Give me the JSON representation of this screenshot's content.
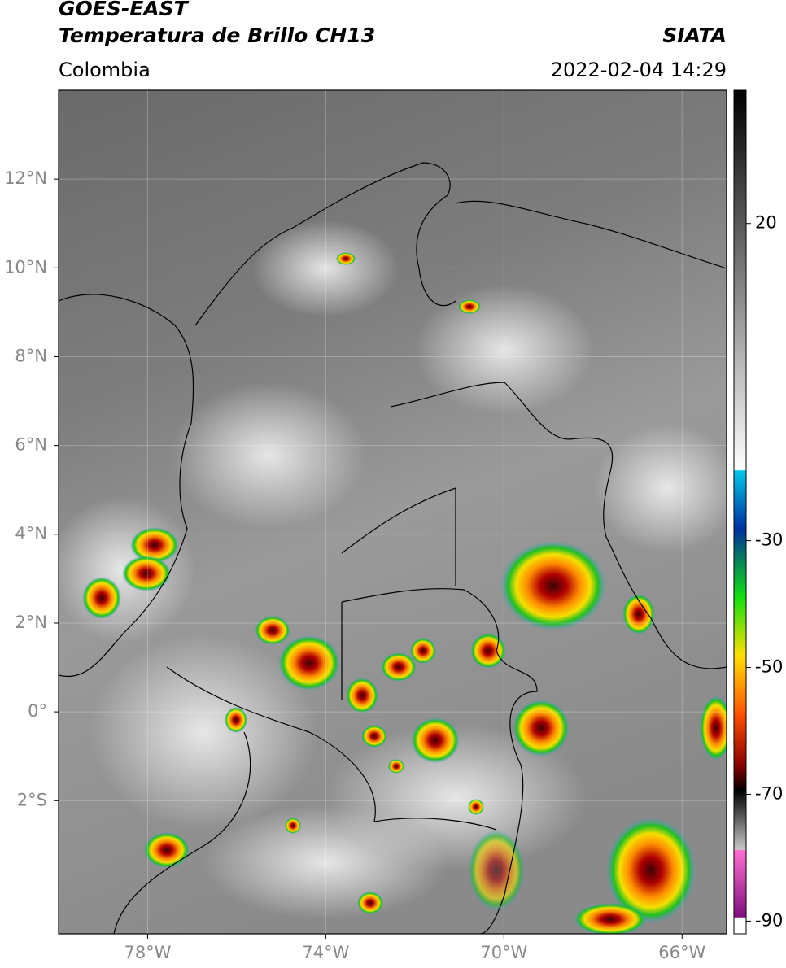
{
  "header": {
    "title": "GOES-EAST",
    "subtitle": "Temperatura de Brillo CH13",
    "region": "Colombia",
    "source": "SIATA",
    "datetime": "2022-02-04 14:29"
  },
  "map": {
    "xlim": [
      -80,
      -65
    ],
    "ylim": [
      -5,
      14
    ],
    "xticks": [
      {
        "value": -78,
        "label": "78°W"
      },
      {
        "value": -74,
        "label": "74°W"
      },
      {
        "value": -70,
        "label": "70°W"
      },
      {
        "value": -66,
        "label": "66°W"
      }
    ],
    "yticks": [
      {
        "value": 12,
        "label": "12°N"
      },
      {
        "value": 10,
        "label": "10°N"
      },
      {
        "value": 8,
        "label": "8°N"
      },
      {
        "value": 6,
        "label": "6°N"
      },
      {
        "value": 4,
        "label": "4°N"
      },
      {
        "value": 2,
        "label": "2°N"
      },
      {
        "value": 0,
        "label": "0°"
      },
      {
        "value": -2,
        "label": "2°S"
      }
    ],
    "grid": true
  },
  "colorbar": {
    "lim": [
      -92,
      41
    ],
    "ticks": [
      20,
      -30,
      -50,
      -70,
      -90
    ]
  }
}
